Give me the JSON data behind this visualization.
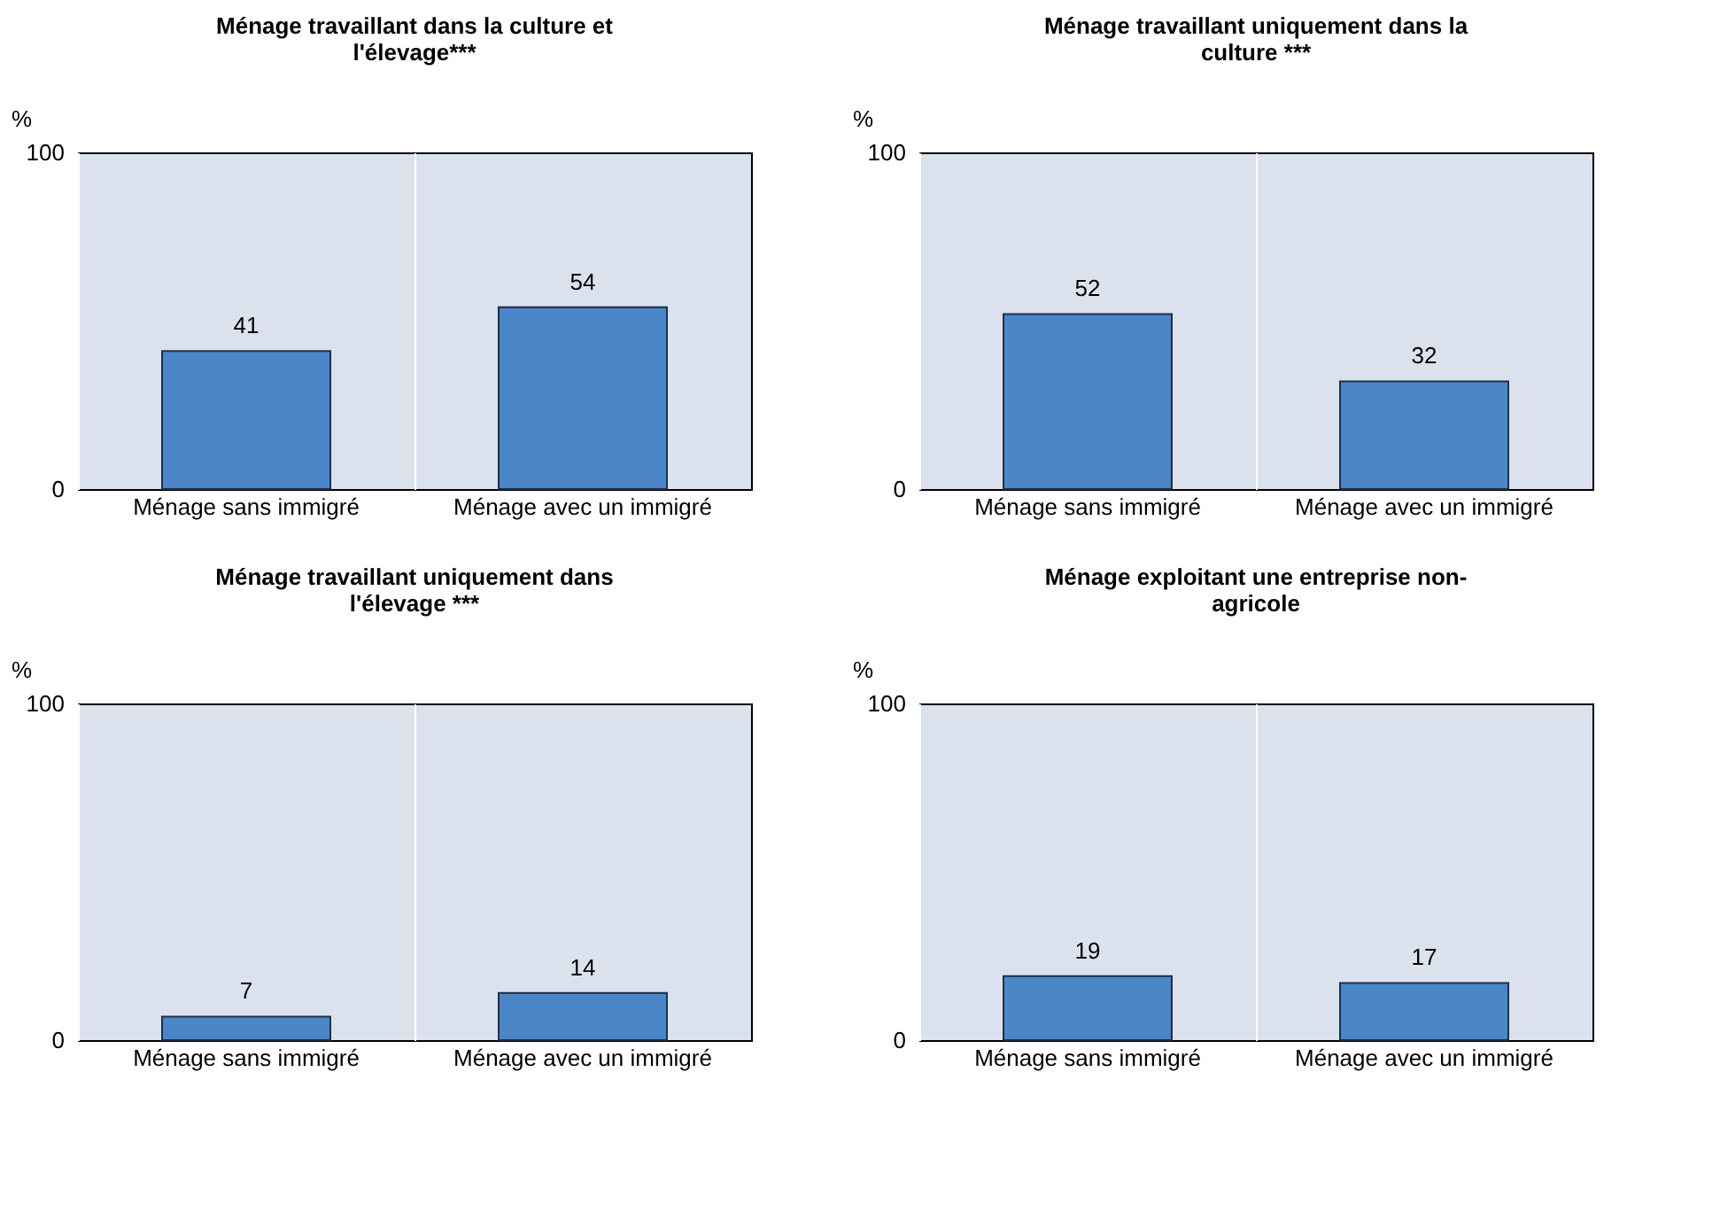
{
  "chart_data": [
    {
      "type": "bar",
      "title": "Ménage travaillant dans la culture et l'élevage***",
      "ylabel": "%",
      "categories": [
        "Ménage sans immigré",
        "Ménage avec un immigré"
      ],
      "values": [
        41,
        54
      ],
      "color": "#4a86c8",
      "ylim": [
        0,
        100
      ],
      "yticks": [
        0,
        100
      ],
      "grid": "x",
      "data_labels": true
    },
    {
      "type": "bar",
      "title": "Ménage travaillant uniquement dans la culture ***",
      "ylabel": "%",
      "categories": [
        "Ménage sans immigré",
        "Ménage avec un immigré"
      ],
      "values": [
        52,
        32
      ],
      "color": "#4a86c8",
      "ylim": [
        0,
        100
      ],
      "yticks": [
        0,
        100
      ],
      "grid": "x",
      "data_labels": true
    },
    {
      "type": "bar",
      "title": "Ménage travaillant uniquement dans l'élevage ***",
      "ylabel": "%",
      "categories": [
        "Ménage sans immigré",
        "Ménage avec un immigré"
      ],
      "values": [
        7,
        14
      ],
      "color": "#4a86c8",
      "ylim": [
        0,
        100
      ],
      "yticks": [
        0,
        100
      ],
      "grid": "x",
      "data_labels": true
    },
    {
      "type": "bar",
      "title": "Ménage exploitant une entreprise non-agricole",
      "ylabel": "%",
      "categories": [
        "Ménage sans immigré",
        "Ménage avec un immigré"
      ],
      "values": [
        19,
        17
      ],
      "color": "#4a86c8",
      "ylim": [
        0,
        100
      ],
      "yticks": [
        0,
        100
      ],
      "grid": "x",
      "data_labels": true
    }
  ]
}
